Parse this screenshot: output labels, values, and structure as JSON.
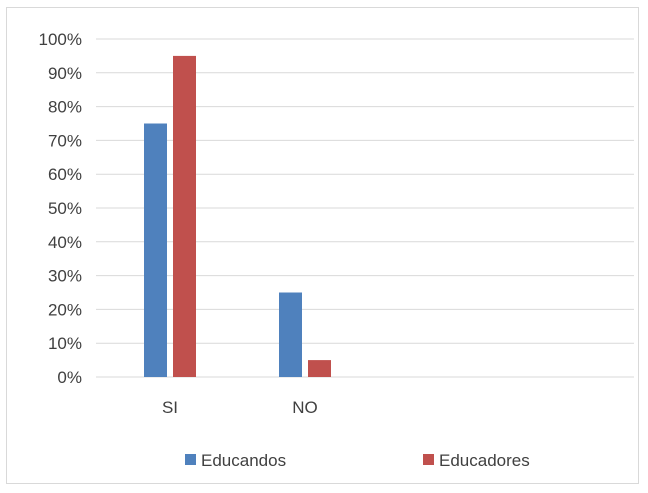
{
  "chart_data": {
    "type": "bar",
    "categories": [
      "SI",
      "NO"
    ],
    "series": [
      {
        "name": "Educandos",
        "values": [
          75,
          25
        ],
        "color": "#4f81bd"
      },
      {
        "name": "Educadores",
        "values": [
          95,
          5
        ],
        "color": "#c0504d"
      }
    ],
    "ylim": [
      0,
      100
    ],
    "y_ticks": [
      "0%",
      "10%",
      "20%",
      "30%",
      "40%",
      "50%",
      "60%",
      "70%",
      "80%",
      "90%",
      "100%"
    ],
    "y_unit": "%",
    "grid": true,
    "legend_position": "bottom",
    "gridline_color": "#d9d9d9",
    "title": "",
    "xlabel": "",
    "ylabel": ""
  }
}
